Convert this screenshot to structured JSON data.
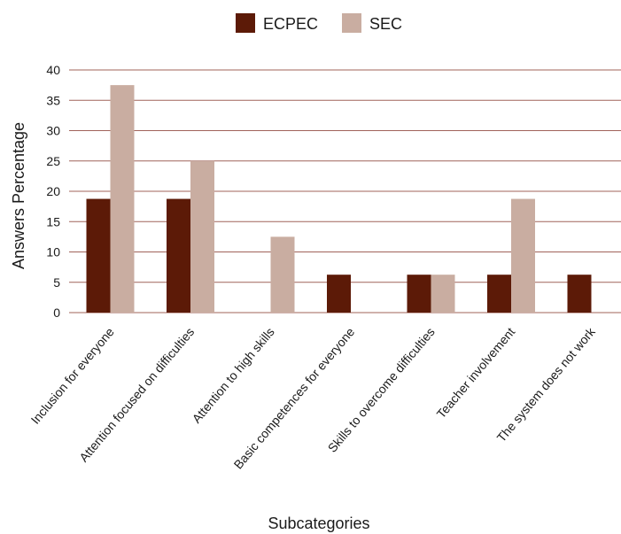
{
  "chart_data": {
    "type": "bar",
    "title": "",
    "xlabel": "Subcategories",
    "ylabel": "Answers Percentage",
    "ylim": [
      0,
      40
    ],
    "yticks": [
      "0",
      "5",
      "10",
      "15",
      "20",
      "25",
      "30",
      "35",
      "40"
    ],
    "grid": true,
    "legend_position": "top-center",
    "categories": [
      "Inclusion for everyone",
      "Attention focused on difficulties",
      "Attention to high skills",
      "Basic competences for everyone",
      "Skills to overcome difficulties",
      "Teacher involvement",
      "The system does not work"
    ],
    "series": [
      {
        "name": "ECPEC",
        "color": "#5c1a07",
        "values": [
          18.75,
          18.75,
          0,
          6.25,
          6.25,
          6.25,
          6.25
        ]
      },
      {
        "name": "SEC",
        "color": "#c9ada1",
        "values": [
          37.5,
          25,
          12.5,
          0,
          6.25,
          18.75,
          0
        ]
      }
    ],
    "gridline_color": "#a0635a"
  }
}
